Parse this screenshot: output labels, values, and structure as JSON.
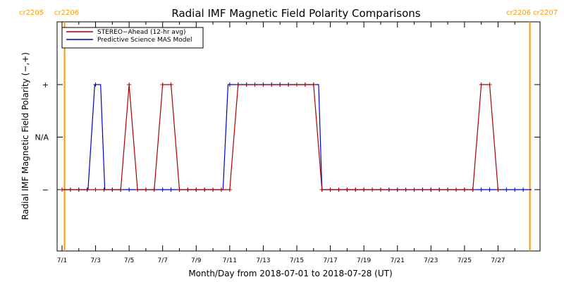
{
  "chart_data": {
    "type": "line",
    "title": "Radial IMF Magnetic Field Polarity Comparisons",
    "xlabel": "Month/Day from 2018-07-01 to 2018-07-28 (UT)",
    "ylabel": "Radial IMF Magnetic Field Polarity (−,+)",
    "xlim": [
      1.0,
      29.0
    ],
    "ylim": [
      -1,
      3
    ],
    "x_ticks": [
      {
        "x": 1,
        "label": "7/1"
      },
      {
        "x": 3,
        "label": "7/3"
      },
      {
        "x": 5,
        "label": "7/5"
      },
      {
        "x": 7,
        "label": "7/7"
      },
      {
        "x": 9,
        "label": "7/9"
      },
      {
        "x": 11,
        "label": "7/11"
      },
      {
        "x": 13,
        "label": "7/13"
      },
      {
        "x": 15,
        "label": "7/15"
      },
      {
        "x": 17,
        "label": "7/17"
      },
      {
        "x": 19,
        "label": "7/19"
      },
      {
        "x": 21,
        "label": "7/21"
      },
      {
        "x": 23,
        "label": "7/23"
      },
      {
        "x": 25,
        "label": "7/25"
      },
      {
        "x": 27,
        "label": "7/27"
      }
    ],
    "y_ticks": [
      {
        "y": 0,
        "label": "−"
      },
      {
        "y": 1,
        "label": "N/A"
      },
      {
        "y": 2,
        "label": "+"
      }
    ],
    "carrington_markers": [
      {
        "x": 1.15,
        "left_label": "cr2205",
        "right_label": "cr2206",
        "side": "left"
      },
      {
        "x": 28.9,
        "left_label": "cr2206",
        "right_label": "cr2207",
        "side": "right"
      }
    ],
    "legend_position": "top-left",
    "series": [
      {
        "name": "STEREO−Ahead (12-hr avg)",
        "color": "#aa0000",
        "x": [
          1.0,
          1.5,
          2.0,
          2.5,
          3.0,
          3.5,
          4.0,
          4.5,
          5.0,
          5.5,
          6.0,
          6.5,
          7.0,
          7.5,
          8.0,
          8.5,
          9.0,
          9.5,
          10.0,
          10.5,
          11.0,
          11.5,
          12.0,
          12.5,
          13.0,
          13.5,
          14.0,
          14.5,
          15.0,
          15.5,
          16.0,
          16.5,
          17.0,
          17.5,
          18.0,
          18.5,
          19.0,
          19.5,
          20.0,
          20.5,
          21.0,
          21.5,
          22.0,
          22.5,
          23.0,
          23.5,
          24.0,
          24.5,
          25.0,
          25.5,
          26.0,
          26.5,
          27.0
        ],
        "y": [
          0,
          0,
          0,
          0,
          0,
          0,
          0,
          0,
          2,
          0,
          0,
          0,
          2,
          2,
          0,
          0,
          0,
          0,
          0,
          0,
          0,
          2,
          2,
          2,
          2,
          2,
          2,
          2,
          2,
          2,
          2,
          0,
          0,
          0,
          0,
          0,
          0,
          0,
          0,
          0,
          0,
          0,
          0,
          0,
          0,
          0,
          0,
          0,
          0,
          0,
          2,
          2,
          0
        ]
      },
      {
        "name": "Predictive Science MAS Model",
        "color": "#0000cc",
        "x": [
          1.0,
          2.55,
          2.95,
          3.3,
          3.55,
          10.6,
          10.9,
          16.3,
          16.5,
          29.0
        ],
        "y": [
          0,
          0,
          2,
          2,
          0,
          0,
          2,
          2,
          0,
          0
        ],
        "mark_spacing": 0.5
      }
    ]
  }
}
